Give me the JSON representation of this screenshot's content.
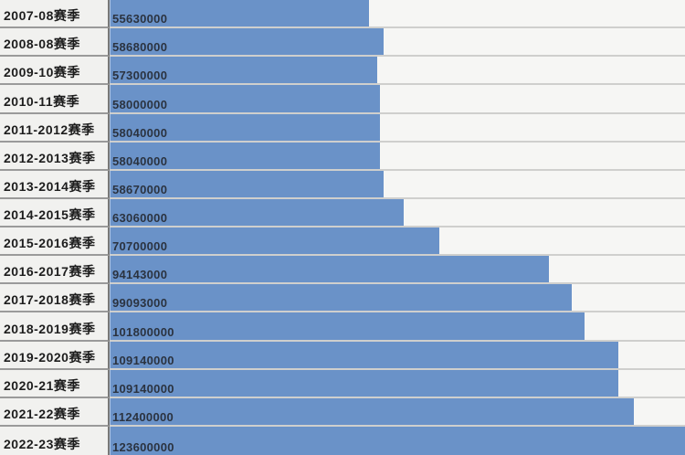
{
  "chart_data": {
    "type": "bar",
    "orientation": "horizontal",
    "categories": [
      "2007-08赛季",
      "2008-08赛季",
      "2009-10赛季",
      "2010-11赛季",
      "2011-2012赛季",
      "2012-2013赛季",
      "2013-2014赛季",
      "2014-2015赛季",
      "2015-2016赛季",
      "2016-2017赛季",
      "2017-2018赛季",
      "2018-2019赛季",
      "2019-2020赛季",
      "2020-21赛季",
      "2021-22赛季",
      "2022-23赛季"
    ],
    "values": [
      55630000,
      58680000,
      57300000,
      58000000,
      58040000,
      58040000,
      58670000,
      63060000,
      70700000,
      94143000,
      99093000,
      101800000,
      109140000,
      109140000,
      112400000,
      123600000
    ],
    "value_labels": [
      "55630000",
      "58680000",
      "57300000",
      "58000000",
      "58040000",
      "58040000",
      "58670000",
      "63060000",
      "70700000",
      "94143000",
      "99093000",
      "101800000",
      "109140000",
      "109140000",
      "112400000",
      "123600000"
    ],
    "xlim": [
      0,
      123600000
    ],
    "data_labels_position": "inside-left",
    "legend": "none",
    "grid": "row-separators"
  },
  "colors": {
    "bar": "#6a92c8",
    "label_column_bg": "#f1f1ef",
    "track_bg": "#f6f6f4",
    "axis_line": "#787878",
    "row_separator_label_column": "#9a9a9a",
    "row_separator_track": "#cfcfcd",
    "label_text": "#1d1d1d",
    "value_text": "#2b3340"
  }
}
